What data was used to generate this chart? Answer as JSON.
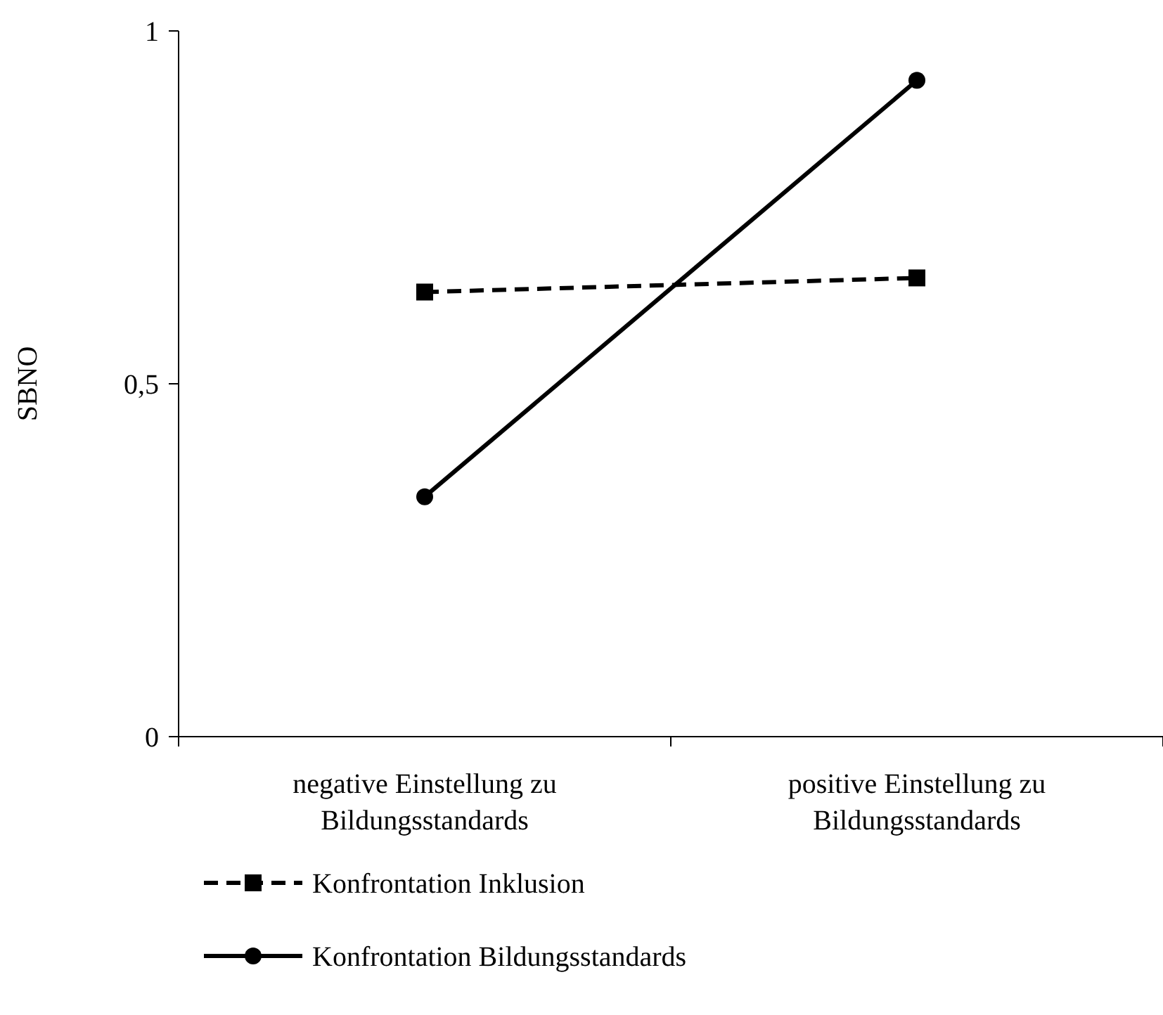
{
  "chart_data": {
    "type": "line",
    "ylabel": "SBNO",
    "categories": [
      "negative Einstellung zu Bildungsstandards",
      "positive Einstellung zu Bildungsstandards"
    ],
    "ylim": [
      0,
      1
    ],
    "yticks": [
      0,
      {
        "value": 0.5,
        "label": "0,5"
      },
      1
    ],
    "grid": false,
    "legend": "bottom",
    "series": [
      {
        "name": "Konfrontation Inklusion",
        "color": "#000000",
        "values": [
          0.63,
          0.65
        ],
        "marker": "square",
        "line_style": "dashed"
      },
      {
        "name": "Konfrontation Bildungsstandards",
        "color": "#000000",
        "values": [
          0.34,
          0.93
        ],
        "marker": "circle",
        "line_style": "solid"
      }
    ]
  }
}
